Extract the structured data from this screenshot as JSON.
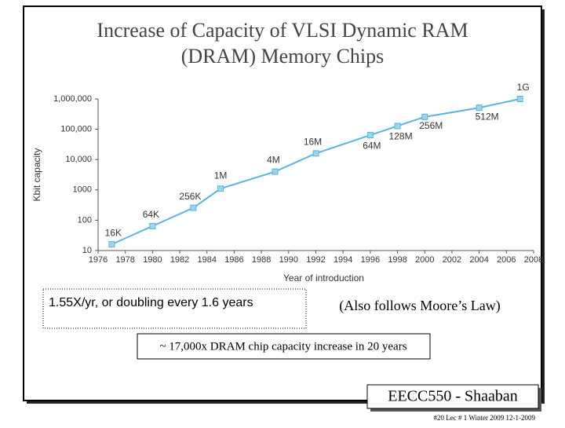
{
  "slide": {
    "title_line1": "Increase of Capacity of VLSI Dynamic RAM",
    "title_line2": "(DRAM) Memory Chips",
    "growth_note": "1.55X/yr,  or doubling every 1.6 years",
    "moore_note": "(Also follows Moore’s Law)",
    "increase_note": "~ 17,000x  DRAM chip capacity increase in 20 years",
    "footer_brand": "EECC550 - Shaaban",
    "footer_info": "#20   Lec # 1  Winter 2009  12-1-2009"
  },
  "chart_data": {
    "type": "line",
    "xlabel": "Year of introduction",
    "ylabel": "Kbit capacity",
    "x": [
      1977,
      1980,
      1983,
      1985,
      1989,
      1992,
      1996,
      1998,
      2000,
      2004,
      2007
    ],
    "series": [
      {
        "color": "#5ab4dc",
        "values": [
          16,
          64,
          256,
          1100,
          4000,
          16000,
          64000,
          128000,
          256000,
          512000,
          1000000
        ],
        "value_labels": [
          "16K",
          "64K",
          "256K",
          "1M",
          "4M",
          "16M",
          "64M",
          "128M",
          "256M",
          "512M",
          "1G"
        ]
      }
    ],
    "log_y": true,
    "xlim": [
      1976,
      2008
    ],
    "xticks": [
      1976,
      1978,
      1980,
      1982,
      1984,
      1986,
      1988,
      1990,
      1992,
      1994,
      1996,
      1998,
      2000,
      2002,
      2004,
      2006,
      2008
    ],
    "ylim": [
      10,
      1000000
    ],
    "yticks": [
      10,
      100,
      1000,
      {
        "value": 10000,
        "label": "10,000"
      },
      {
        "value": 100000,
        "label": "100,000"
      },
      {
        "value": 1000000,
        "label": "1,000,000"
      }
    ],
    "grid": false
  }
}
